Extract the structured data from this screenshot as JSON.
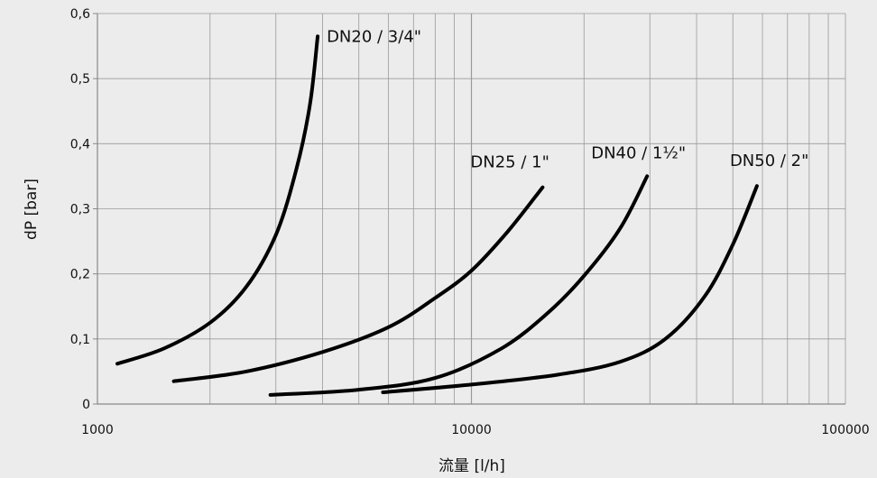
{
  "chart_data": {
    "type": "line",
    "xlabel": "流量 [l/h]",
    "ylabel": "dP [bar]",
    "x_scale": "log",
    "xlim": [
      1000,
      100000
    ],
    "ylim": [
      0,
      0.6
    ],
    "x_ticks": [
      1000,
      10000,
      100000
    ],
    "x_tick_labels": [
      "1000",
      "10000",
      "100000"
    ],
    "y_ticks": [
      0,
      0.1,
      0.2,
      0.3,
      0.4,
      0.5,
      0.6
    ],
    "y_tick_labels": [
      "0",
      "0,1",
      "0,2",
      "0,3",
      "0,4",
      "0,5",
      "0,6"
    ],
    "grid": true,
    "series": [
      {
        "name": "DN20 / 3/4\"",
        "points": [
          [
            1130,
            0.062
          ],
          [
            1500,
            0.085
          ],
          [
            2000,
            0.125
          ],
          [
            2500,
            0.18
          ],
          [
            3000,
            0.26
          ],
          [
            3400,
            0.36
          ],
          [
            3700,
            0.46
          ],
          [
            3880,
            0.565
          ]
        ]
      },
      {
        "name": "DN25 / 1\"",
        "points": [
          [
            1600,
            0.035
          ],
          [
            2500,
            0.05
          ],
          [
            4000,
            0.08
          ],
          [
            6000,
            0.118
          ],
          [
            8000,
            0.163
          ],
          [
            10000,
            0.205
          ],
          [
            12500,
            0.265
          ],
          [
            15500,
            0.333
          ]
        ]
      },
      {
        "name": "DN40 / 1½\"",
        "points": [
          [
            2900,
            0.014
          ],
          [
            5000,
            0.022
          ],
          [
            8000,
            0.04
          ],
          [
            12000,
            0.085
          ],
          [
            16000,
            0.14
          ],
          [
            20000,
            0.197
          ],
          [
            25000,
            0.27
          ],
          [
            29500,
            0.35
          ]
        ]
      },
      {
        "name": "DN50 / 2\"",
        "points": [
          [
            5800,
            0.018
          ],
          [
            10000,
            0.03
          ],
          [
            17000,
            0.045
          ],
          [
            25000,
            0.065
          ],
          [
            33000,
            0.1
          ],
          [
            42000,
            0.165
          ],
          [
            50000,
            0.245
          ],
          [
            58000,
            0.335
          ]
        ]
      }
    ],
    "colors": {
      "background": "#ececec",
      "grid": "#9a9a9a",
      "line": "#000000",
      "text": "#111111"
    }
  }
}
